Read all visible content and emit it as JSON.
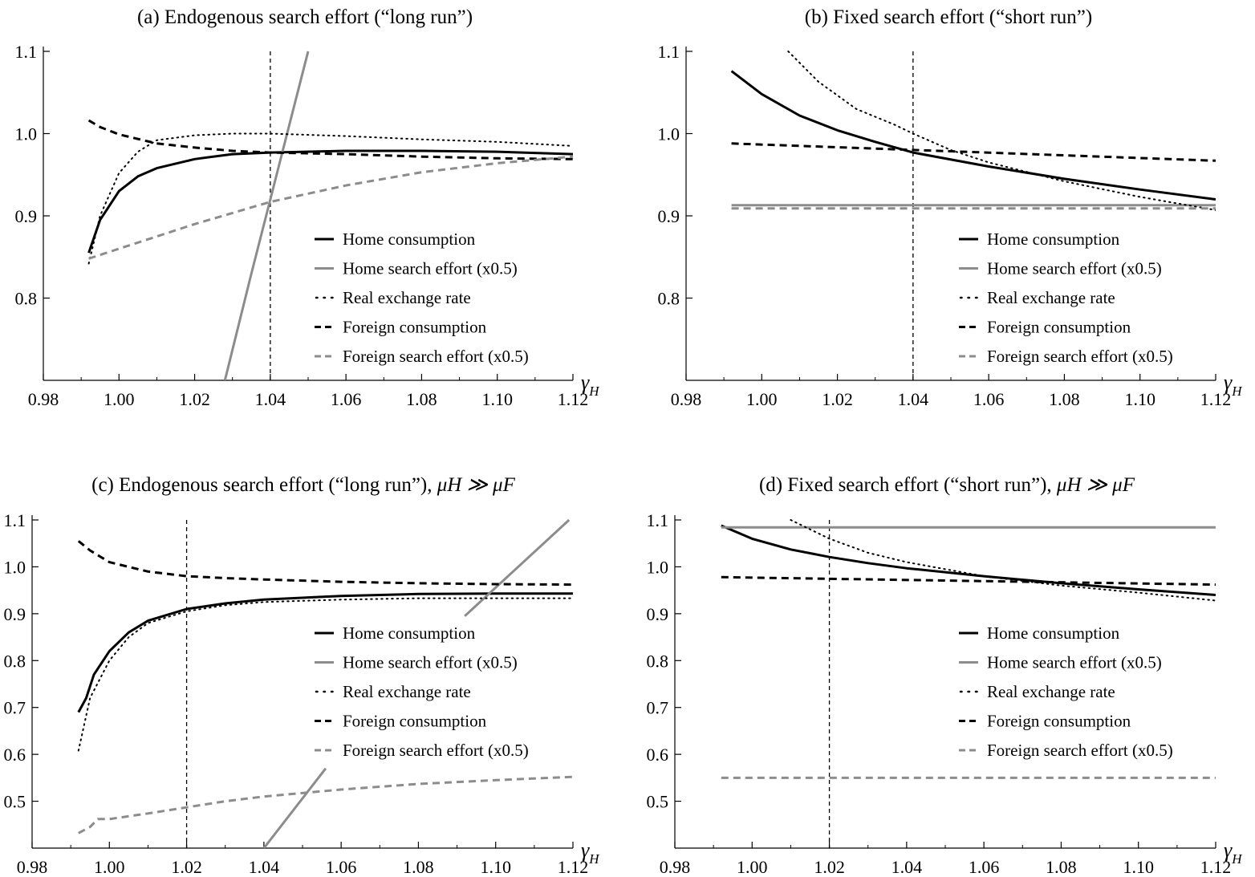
{
  "legend_labels": {
    "home_consumption": "Home consumption",
    "home_search": "Home search effort (x0.5)",
    "real_exchange": "Real exchange rate",
    "foreign_consumption": "Foreign consumption",
    "foreign_search": "Foreign search effort (x0.5)"
  },
  "x_variable": {
    "main": "γ",
    "sub": "H"
  },
  "colors": {
    "black": "#000000",
    "gray": "#8c8c8c"
  },
  "chart_data": [
    {
      "type": "line",
      "title_text": "(a) Endogenous search effort (“long run”)",
      "title_mu": "",
      "xlim": [
        0.98,
        1.12
      ],
      "ylim": [
        0.7,
        1.1
      ],
      "xticks": [
        "0.98",
        "1.00",
        "1.02",
        "1.04",
        "1.06",
        "1.08",
        "1.10",
        "1.12"
      ],
      "yticks": [
        "0.8",
        "0.9",
        "1.0",
        "1.1"
      ],
      "vline": 1.04,
      "grid": false,
      "legend_position": "bottom-right",
      "series": [
        {
          "key": "home_consumption",
          "x": [
            0.992,
            0.995,
            1.0,
            1.005,
            1.01,
            1.02,
            1.03,
            1.04,
            1.06,
            1.08,
            1.1,
            1.12
          ],
          "y": [
            0.855,
            0.895,
            0.93,
            0.948,
            0.958,
            0.969,
            0.975,
            0.977,
            0.979,
            0.979,
            0.978,
            0.975
          ]
        },
        {
          "key": "home_search",
          "x": [
            1.028,
            1.035,
            1.04,
            1.045,
            1.05
          ],
          "y": [
            0.7,
            0.83,
            0.92,
            1.01,
            1.1
          ]
        },
        {
          "key": "real_exchange",
          "x": [
            0.992,
            0.995,
            1.0,
            1.005,
            1.01,
            1.02,
            1.03,
            1.04,
            1.06,
            1.08,
            1.1,
            1.12
          ],
          "y": [
            0.842,
            0.9,
            0.952,
            0.978,
            0.992,
            0.998,
            1.0,
            1.0,
            0.997,
            0.993,
            0.99,
            0.985
          ]
        },
        {
          "key": "foreign_consumption",
          "x": [
            0.992,
            0.995,
            1.0,
            1.01,
            1.02,
            1.03,
            1.04,
            1.06,
            1.08,
            1.1,
            1.12
          ],
          "y": [
            1.016,
            1.008,
            0.999,
            0.988,
            0.983,
            0.979,
            0.977,
            0.975,
            0.972,
            0.97,
            0.969
          ]
        },
        {
          "key": "foreign_search",
          "x": [
            0.992,
            1.0,
            1.02,
            1.04,
            1.06,
            1.08,
            1.1,
            1.12
          ],
          "y": [
            0.848,
            0.86,
            0.89,
            0.917,
            0.937,
            0.953,
            0.964,
            0.972
          ]
        }
      ]
    },
    {
      "type": "line",
      "title_text": "(b) Fixed search effort (“short run”)",
      "title_mu": "",
      "xlim": [
        0.98,
        1.12
      ],
      "ylim": [
        0.7,
        1.1
      ],
      "xticks": [
        "0.98",
        "1.00",
        "1.02",
        "1.04",
        "1.06",
        "1.08",
        "1.10",
        "1.12"
      ],
      "yticks": [
        "0.8",
        "0.9",
        "1.0",
        "1.1"
      ],
      "vline": 1.04,
      "grid": false,
      "legend_position": "bottom-right",
      "series": [
        {
          "key": "home_consumption",
          "x": [
            0.992,
            1.0,
            1.01,
            1.02,
            1.03,
            1.04,
            1.06,
            1.08,
            1.1,
            1.12
          ],
          "y": [
            1.076,
            1.048,
            1.022,
            1.004,
            0.99,
            0.977,
            0.96,
            0.945,
            0.932,
            0.92
          ]
        },
        {
          "key": "home_search",
          "x": [
            0.992,
            1.12
          ],
          "y": [
            0.913,
            0.913
          ]
        },
        {
          "key": "real_exchange",
          "x": [
            1.007,
            1.015,
            1.025,
            1.035,
            1.04,
            1.05,
            1.06,
            1.08,
            1.1,
            1.12
          ],
          "y": [
            1.1,
            1.063,
            1.03,
            1.011,
            1.0,
            0.98,
            0.965,
            0.942,
            0.923,
            0.907
          ]
        },
        {
          "key": "foreign_consumption",
          "x": [
            0.992,
            1.12
          ],
          "y": [
            0.988,
            0.967
          ]
        },
        {
          "key": "foreign_search",
          "x": [
            0.992,
            1.12
          ],
          "y": [
            0.909,
            0.909
          ]
        }
      ]
    },
    {
      "type": "line",
      "title_text": "(c) Endogenous search effort (“long run”), ",
      "title_mu": "μH ≫ μF",
      "xlim": [
        0.98,
        1.12
      ],
      "ylim": [
        0.4,
        1.1
      ],
      "xticks": [
        "0.98",
        "1.00",
        "1.02",
        "1.04",
        "1.06",
        "1.08",
        "1.10",
        "1.12"
      ],
      "yticks": [
        "0.5",
        "0.6",
        "0.7",
        "0.8",
        "0.9",
        "1.0",
        "1.1"
      ],
      "vline": 1.02,
      "grid": false,
      "legend_position": "center-right",
      "series": [
        {
          "key": "home_consumption",
          "x": [
            0.992,
            0.994,
            0.996,
            1.0,
            1.005,
            1.01,
            1.02,
            1.03,
            1.04,
            1.06,
            1.08,
            1.1,
            1.12
          ],
          "y": [
            0.69,
            0.72,
            0.77,
            0.82,
            0.86,
            0.885,
            0.91,
            0.922,
            0.93,
            0.938,
            0.942,
            0.943,
            0.943
          ]
        },
        {
          "key": "home_search",
          "x": [
            1.04,
            1.056
          ],
          "y": [
            0.4,
            0.57
          ]
        },
        {
          "key": "home_search",
          "x": [
            1.092,
            1.119
          ],
          "y": [
            0.895,
            1.1
          ]
        },
        {
          "key": "real_exchange",
          "x": [
            0.992,
            0.995,
            1.0,
            1.005,
            1.01,
            1.02,
            1.03,
            1.04,
            1.06,
            1.08,
            1.1,
            1.12
          ],
          "y": [
            0.608,
            0.72,
            0.8,
            0.85,
            0.88,
            0.905,
            0.918,
            0.925,
            0.93,
            0.933,
            0.933,
            0.933
          ]
        },
        {
          "key": "foreign_consumption",
          "x": [
            0.992,
            0.995,
            1.0,
            1.01,
            1.02,
            1.03,
            1.04,
            1.06,
            1.08,
            1.1,
            1.12
          ],
          "y": [
            1.055,
            1.035,
            1.01,
            0.99,
            0.98,
            0.976,
            0.973,
            0.968,
            0.965,
            0.963,
            0.962
          ]
        },
        {
          "key": "foreign_search",
          "x": [
            0.992,
            0.995,
            0.997,
            1.0,
            1.01,
            1.02,
            1.03,
            1.04,
            1.06,
            1.08,
            1.1,
            1.12
          ],
          "y": [
            0.432,
            0.445,
            0.462,
            0.462,
            0.474,
            0.487,
            0.5,
            0.51,
            0.525,
            0.537,
            0.545,
            0.552
          ]
        }
      ]
    },
    {
      "type": "line",
      "title_text": "(d) Fixed search effort (“short run”), ",
      "title_mu": "μH ≫ μF",
      "xlim": [
        0.98,
        1.12
      ],
      "ylim": [
        0.4,
        1.1
      ],
      "xticks": [
        "0.98",
        "1.00",
        "1.02",
        "1.04",
        "1.06",
        "1.08",
        "1.10",
        "1.12"
      ],
      "yticks": [
        "0.5",
        "0.6",
        "0.7",
        "0.8",
        "0.9",
        "1.0",
        "1.1"
      ],
      "vline": 1.02,
      "grid": false,
      "legend_position": "center-right",
      "series": [
        {
          "key": "home_consumption",
          "x": [
            0.992,
            1.0,
            1.01,
            1.02,
            1.03,
            1.04,
            1.06,
            1.08,
            1.1,
            1.12
          ],
          "y": [
            1.088,
            1.06,
            1.037,
            1.021,
            1.008,
            0.997,
            0.98,
            0.965,
            0.952,
            0.94
          ]
        },
        {
          "key": "home_search",
          "x": [
            0.992,
            1.12
          ],
          "y": [
            1.084,
            1.084
          ]
        },
        {
          "key": "real_exchange",
          "x": [
            1.01,
            1.02,
            1.03,
            1.04,
            1.06,
            1.08,
            1.1,
            1.12
          ],
          "y": [
            1.1,
            1.06,
            1.03,
            1.01,
            0.98,
            0.96,
            0.945,
            0.928
          ]
        },
        {
          "key": "foreign_consumption",
          "x": [
            0.992,
            1.12
          ],
          "y": [
            0.978,
            0.962
          ]
        },
        {
          "key": "foreign_search",
          "x": [
            0.992,
            1.12
          ],
          "y": [
            0.55,
            0.55
          ]
        }
      ]
    }
  ]
}
